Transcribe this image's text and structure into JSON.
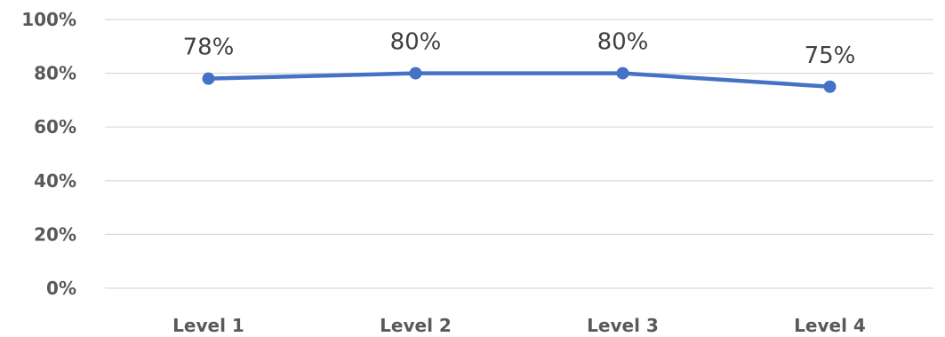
{
  "chart_data": {
    "type": "line",
    "title": "",
    "xlabel": "",
    "ylabel": "",
    "categories": [
      "Level 1",
      "Level 2",
      "Level 3",
      "Level 4"
    ],
    "series": [
      {
        "values": [
          78,
          80,
          80,
          75
        ],
        "data_labels": [
          "78%",
          "80%",
          "80%",
          "75%"
        ],
        "color": "#4472c4"
      }
    ],
    "ylim": [
      0,
      100
    ],
    "y_ticks": [
      0,
      20,
      40,
      60,
      80,
      100
    ],
    "y_tick_labels": [
      "0%",
      "20%",
      "40%",
      "60%",
      "80%",
      "100%"
    ],
    "grid": true,
    "legend": "none",
    "grid_color": "#d9d9d9",
    "text_color": "#595959",
    "label_color": "#404040"
  }
}
